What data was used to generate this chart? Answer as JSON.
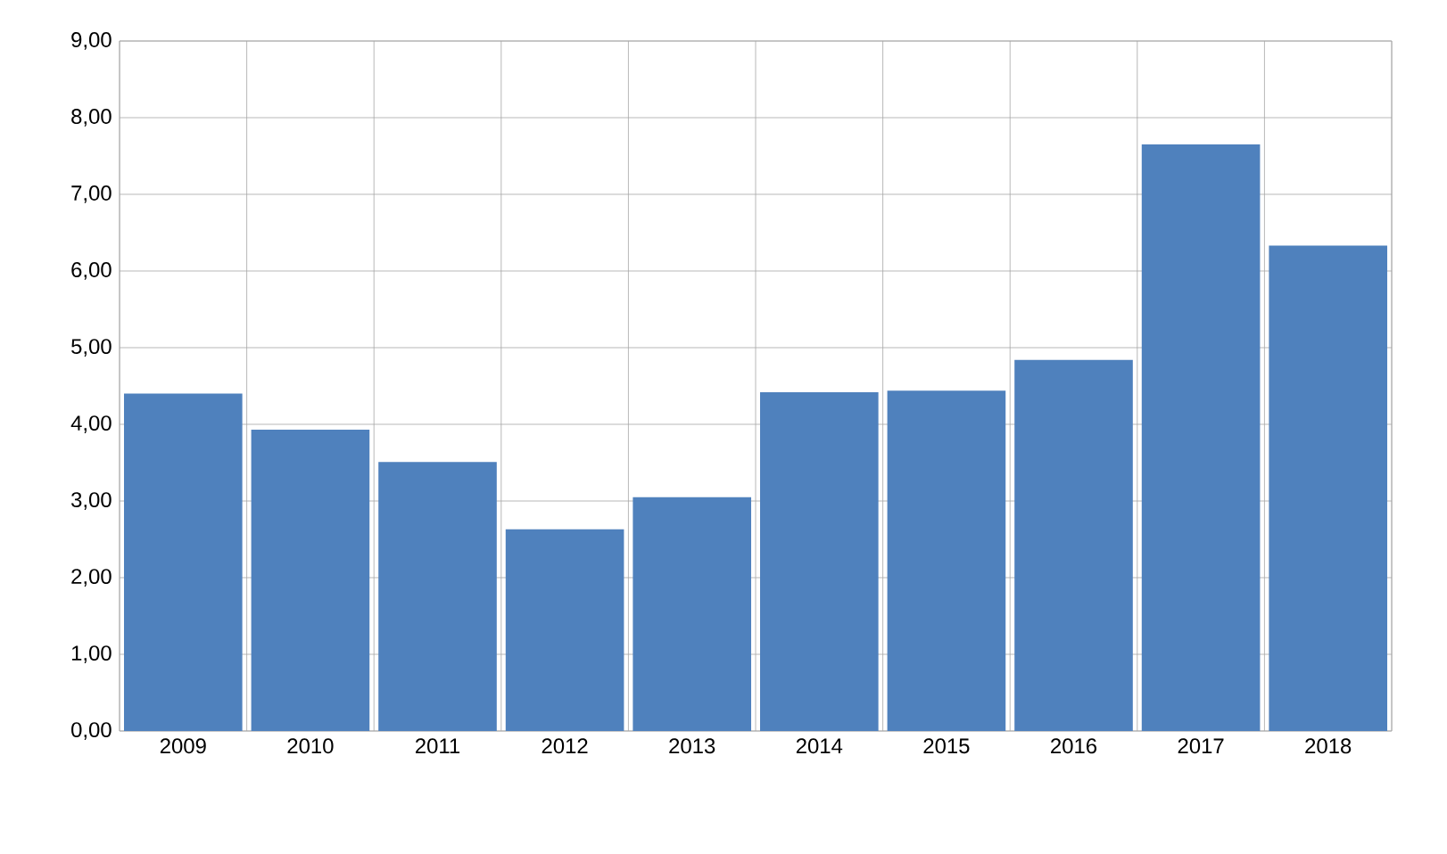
{
  "chart_data": {
    "type": "bar",
    "categories": [
      "2009",
      "2010",
      "2011",
      "2012",
      "2013",
      "2014",
      "2015",
      "2016",
      "2017",
      "2018"
    ],
    "values": [
      4.4,
      3.93,
      3.51,
      2.63,
      3.05,
      4.42,
      4.44,
      4.84,
      7.65,
      6.33
    ],
    "color": "#4f81bd",
    "ylim": [
      0,
      9
    ],
    "yticks": [
      {
        "value": 0,
        "label": "0,00"
      },
      {
        "value": 1,
        "label": "1,00"
      },
      {
        "value": 2,
        "label": "2,00"
      },
      {
        "value": 3,
        "label": "3,00"
      },
      {
        "value": 4,
        "label": "4,00"
      },
      {
        "value": 5,
        "label": "5,00"
      },
      {
        "value": 6,
        "label": "6,00"
      },
      {
        "value": 7,
        "label": "7,00"
      },
      {
        "value": 8,
        "label": "8,00"
      },
      {
        "value": 9,
        "label": "9,00"
      }
    ],
    "grid": true
  }
}
